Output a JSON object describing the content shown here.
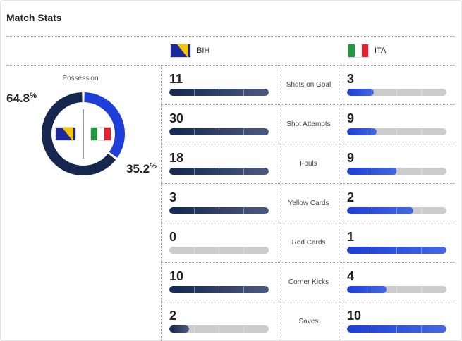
{
  "title": "Match Stats",
  "teams": {
    "home": {
      "abbr": "BIH",
      "color": "#15264f"
    },
    "away": {
      "abbr": "ITA",
      "color": "#1d3ed8"
    }
  },
  "possession": {
    "label": "Possession",
    "home": 64.8,
    "away": 35.2,
    "home_text": "64.8",
    "away_text": "35.2",
    "unit": "%"
  },
  "stats": [
    {
      "label": "Shots on Goal",
      "home": 11,
      "away": 3
    },
    {
      "label": "Shot Attempts",
      "home": 30,
      "away": 9
    },
    {
      "label": "Fouls",
      "home": 18,
      "away": 9
    },
    {
      "label": "Yellow Cards",
      "home": 3,
      "away": 2
    },
    {
      "label": "Red Cards",
      "home": 0,
      "away": 1
    },
    {
      "label": "Corner Kicks",
      "home": 10,
      "away": 4
    },
    {
      "label": "Saves",
      "home": 2,
      "away": 10
    }
  ]
}
